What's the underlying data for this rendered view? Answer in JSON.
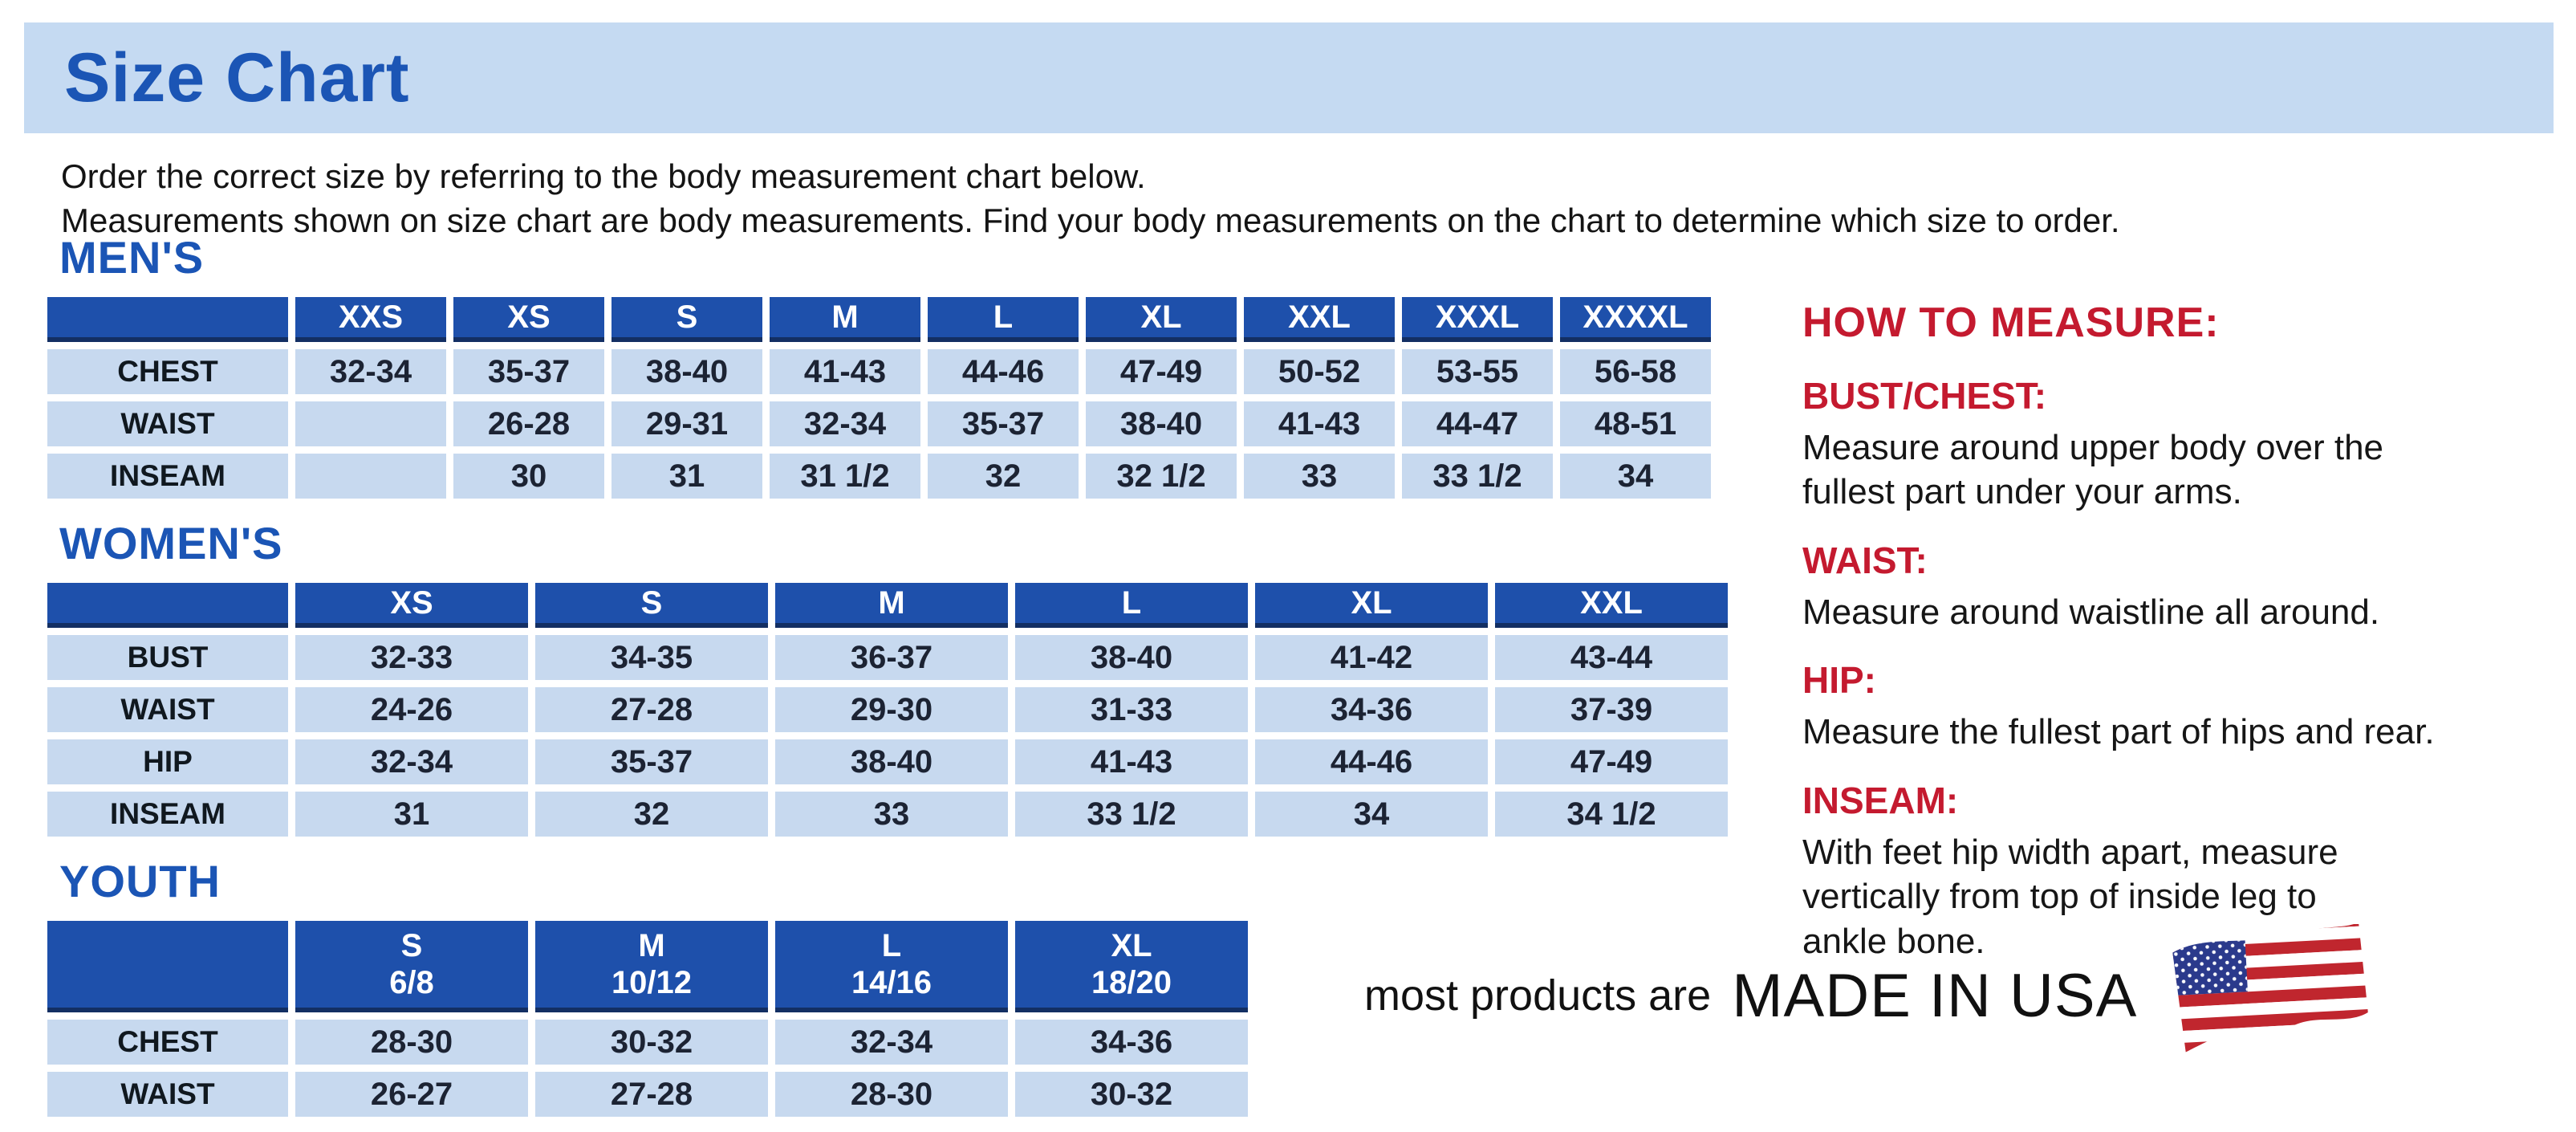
{
  "page_title": "Size Chart",
  "intro": {
    "line1": "Order the correct size by referring to the body measurement chart below.",
    "line2": "Measurements shown on size chart are body measurements.  Find your body measurements on the chart to determine which size to order."
  },
  "colors": {
    "accent_blue": "#1b55b5",
    "table_header_blue": "#1e50ab",
    "cell_light_blue": "#c7d9ef",
    "heading_red": "#c41a2f",
    "banner_light_blue": "#c5daf2"
  },
  "tables": {
    "mens": {
      "heading": "MEN'S",
      "columns": [
        "XXS",
        "XS",
        "S",
        "M",
        "L",
        "XL",
        "XXL",
        "XXXL",
        "XXXXL"
      ],
      "rows": [
        {
          "label": "CHEST",
          "values": [
            "32-34",
            "35-37",
            "38-40",
            "41-43",
            "44-46",
            "47-49",
            "50-52",
            "53-55",
            "56-58"
          ]
        },
        {
          "label": "WAIST",
          "values": [
            "",
            "26-28",
            "29-31",
            "32-34",
            "35-37",
            "38-40",
            "41-43",
            "44-47",
            "48-51"
          ]
        },
        {
          "label": "INSEAM",
          "values": [
            "",
            "30",
            "31",
            "31 1/2",
            "32",
            "32 1/2",
            "33",
            "33 1/2",
            "34"
          ]
        }
      ]
    },
    "womens": {
      "heading": "WOMEN'S",
      "columns": [
        "XS",
        "S",
        "M",
        "L",
        "XL",
        "XXL"
      ],
      "rows": [
        {
          "label": "BUST",
          "values": [
            "32-33",
            "34-35",
            "36-37",
            "38-40",
            "41-42",
            "43-44"
          ]
        },
        {
          "label": "WAIST",
          "values": [
            "24-26",
            "27-28",
            "29-30",
            "31-33",
            "34-36",
            "37-39"
          ]
        },
        {
          "label": "HIP",
          "values": [
            "32-34",
            "35-37",
            "38-40",
            "41-43",
            "44-46",
            "47-49"
          ]
        },
        {
          "label": "INSEAM",
          "values": [
            "31",
            "32",
            "33",
            "33 1/2",
            "34",
            "34 1/2"
          ]
        }
      ]
    },
    "youth": {
      "heading": "YOUTH",
      "columns": [
        {
          "label": "S",
          "sub": "6/8"
        },
        {
          "label": "M",
          "sub": "10/12"
        },
        {
          "label": "L",
          "sub": "14/16"
        },
        {
          "label": "XL",
          "sub": "18/20"
        }
      ],
      "rows": [
        {
          "label": "CHEST",
          "values": [
            "28-30",
            "30-32",
            "32-34",
            "34-36"
          ]
        },
        {
          "label": "WAIST",
          "values": [
            "26-27",
            "27-28",
            "28-30",
            "30-32"
          ]
        }
      ]
    }
  },
  "how_to_measure": {
    "heading": "HOW TO MEASURE:",
    "sections": [
      {
        "label": "BUST/CHEST:",
        "text": "Measure around upper body over the\nfullest part under your arms."
      },
      {
        "label": "WAIST:",
        "text": "Measure around waistline all around."
      },
      {
        "label": "HIP:",
        "text": "Measure the fullest part of hips and rear."
      },
      {
        "label": "INSEAM:",
        "text": "With feet hip width apart, measure\nvertically from top of inside leg to\nankle bone."
      }
    ]
  },
  "footer": {
    "prefix": "most products are",
    "emphasis": "MADE IN USA",
    "flag_icon": "usa-flag-icon"
  }
}
